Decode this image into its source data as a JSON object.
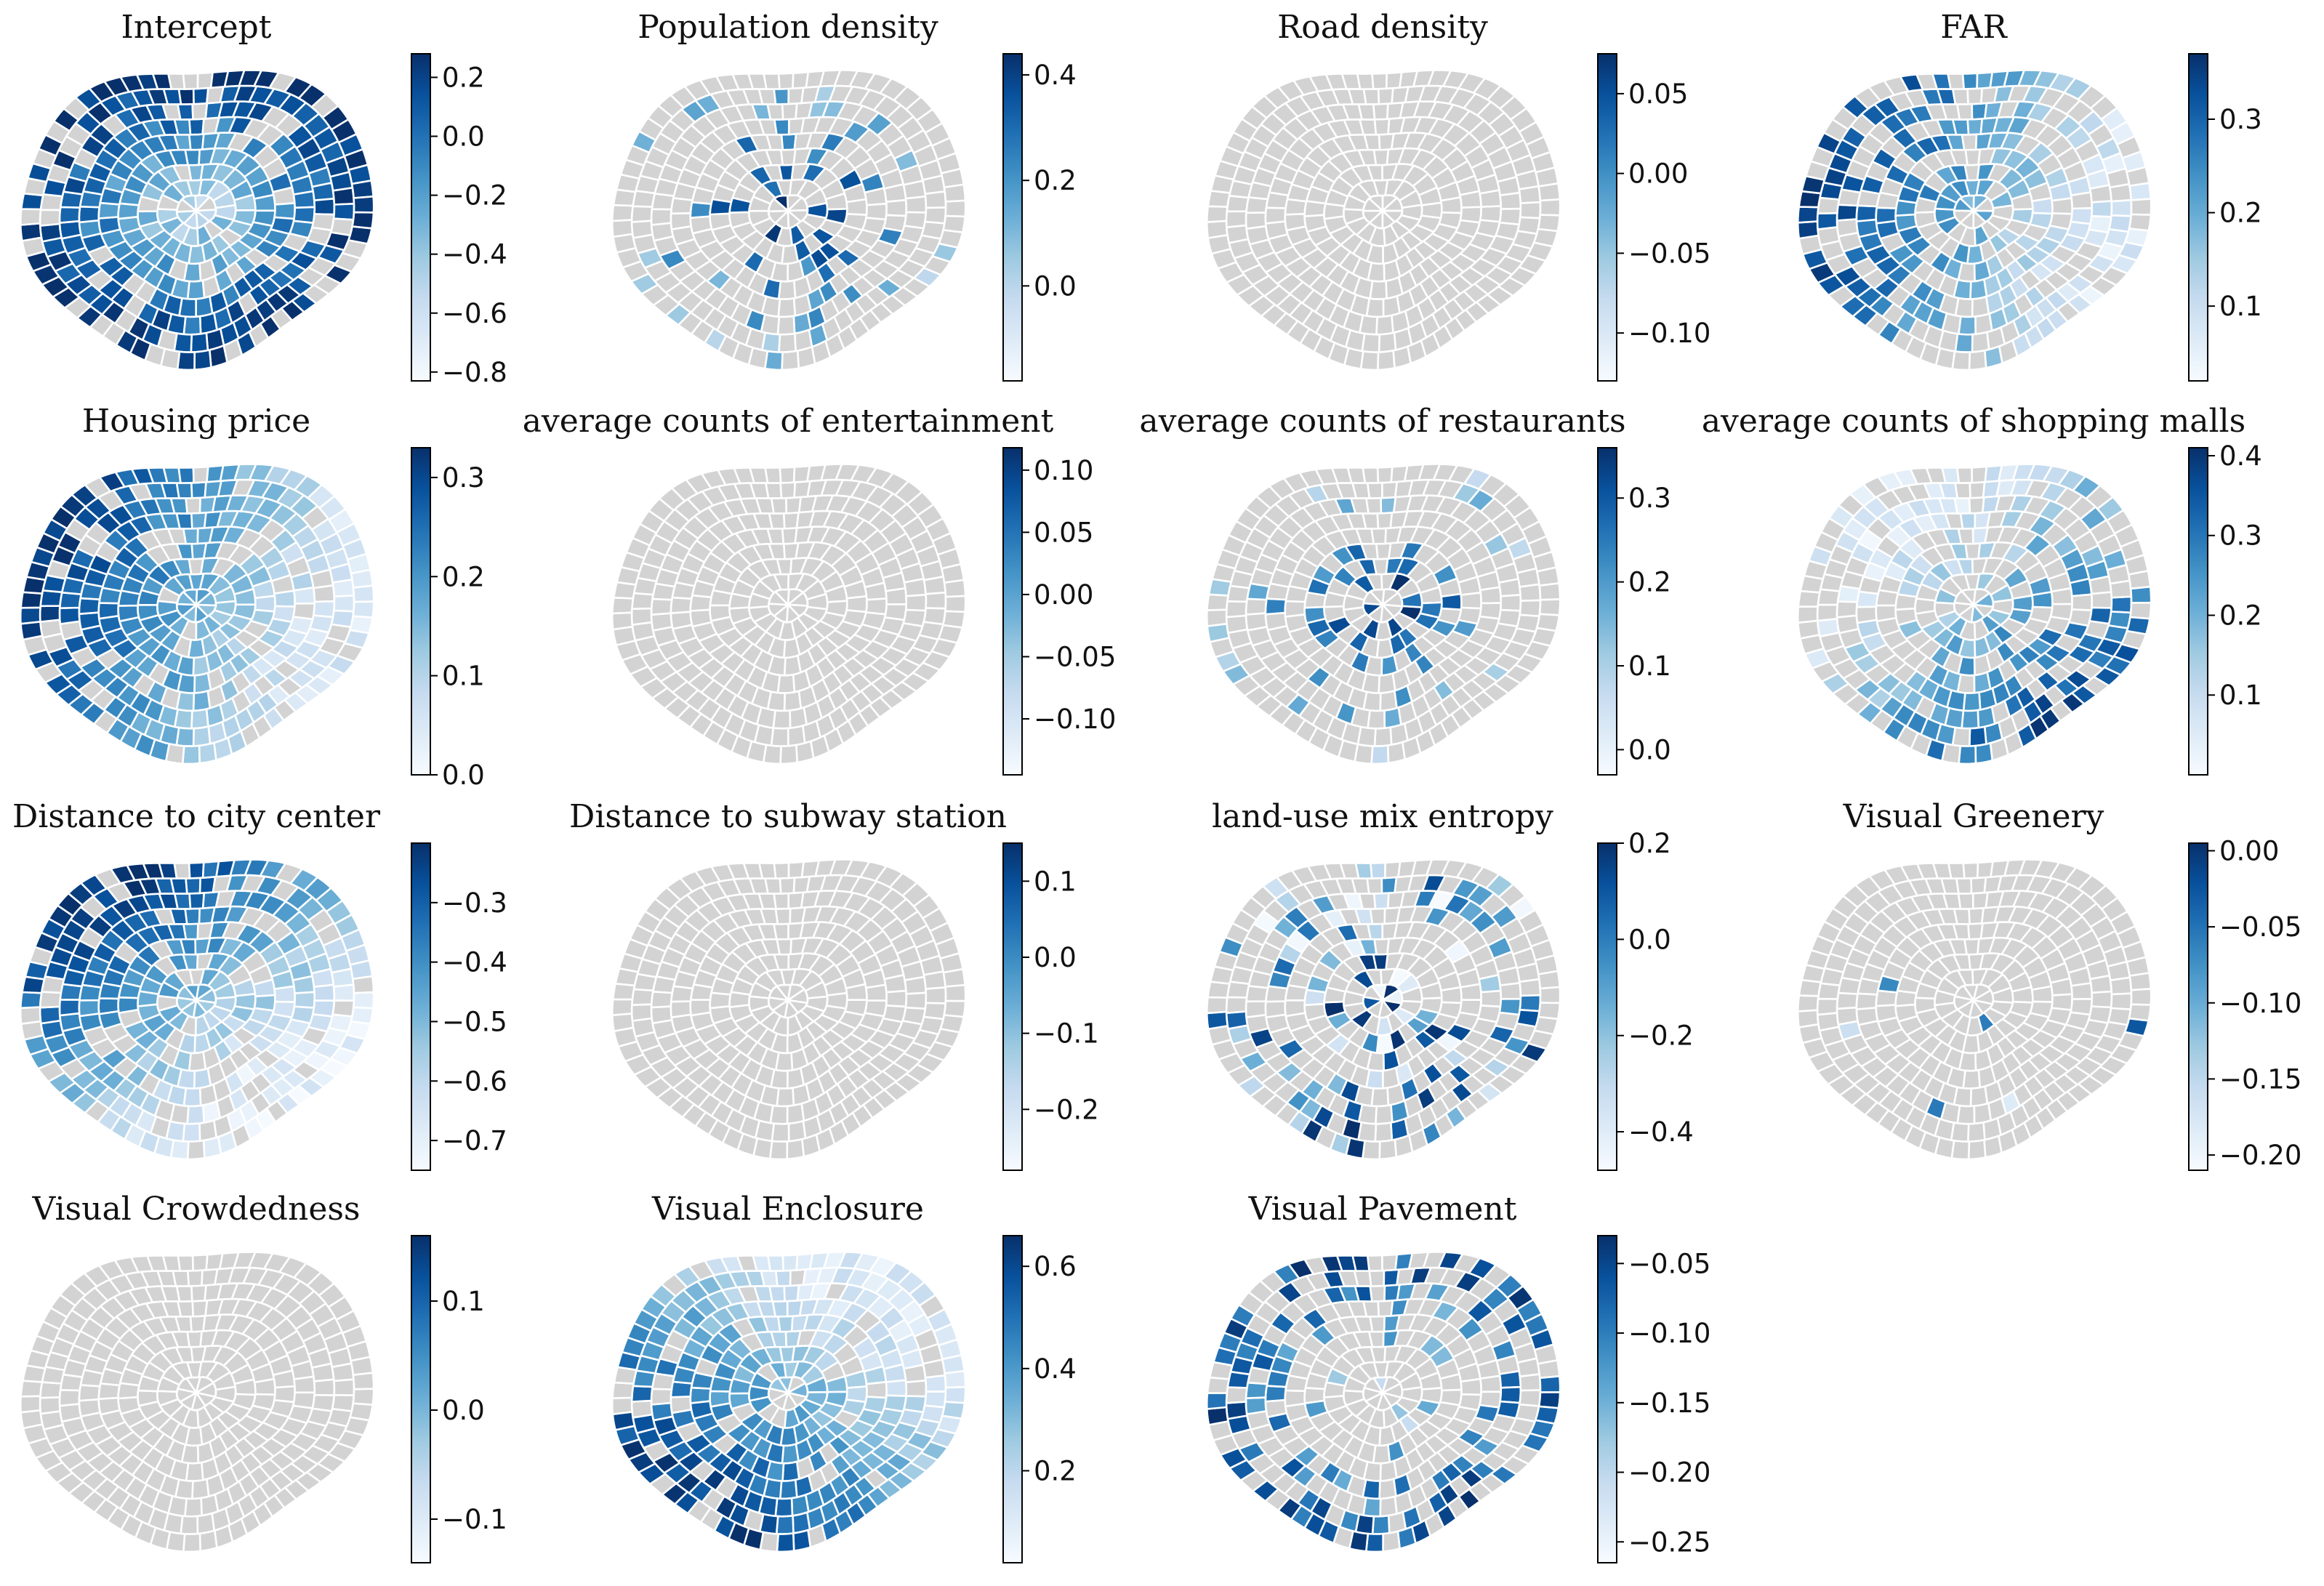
{
  "figure": {
    "type": "choropleth-grid",
    "grid": {
      "rows": 4,
      "cols": 4
    },
    "colormap": "Blues",
    "no_data_color": "#d3d3d3",
    "boundary_color": "#ffffff"
  },
  "chart_data": [
    {
      "type": "heatmap",
      "title": "Intercept",
      "vmin": -0.83,
      "vmax": 0.28,
      "ticks": [
        0.2,
        0.0,
        -0.2,
        -0.4,
        -0.6,
        -0.8
      ],
      "tick_labels": [
        "0.2",
        "0.0",
        "−0.2",
        "−0.4",
        "−0.6",
        "−0.8"
      ],
      "pattern": "outer",
      "coverage": 0.78,
      "seed": 11
    },
    {
      "type": "heatmap",
      "title": "Population density",
      "vmin": -0.18,
      "vmax": 0.44,
      "ticks": [
        0.4,
        0.2,
        0.0
      ],
      "tick_labels": [
        "0.4",
        "0.2",
        "0.0"
      ],
      "pattern": "star",
      "coverage": 0.22,
      "seed": 23
    },
    {
      "type": "heatmap",
      "title": "Road density",
      "vmin": -0.13,
      "vmax": 0.075,
      "ticks": [
        0.05,
        0.0,
        -0.05,
        -0.1
      ],
      "tick_labels": [
        "0.05",
        "0.00",
        "−0.05",
        "−0.10"
      ],
      "pattern": "none",
      "coverage": 0.0,
      "seed": 37
    },
    {
      "type": "heatmap",
      "title": "FAR",
      "vmin": 0.02,
      "vmax": 0.37,
      "ticks": [
        0.3,
        0.2,
        0.1
      ],
      "tick_labels": [
        "0.3",
        "0.2",
        "0.1"
      ],
      "pattern": "west",
      "coverage": 0.55,
      "seed": 41
    },
    {
      "type": "heatmap",
      "title": "Housing price",
      "vmin": 0.0,
      "vmax": 0.33,
      "ticks": [
        0.3,
        0.2,
        0.1,
        0.0
      ],
      "tick_labels": [
        "0.3",
        "0.2",
        "0.1",
        "0.0"
      ],
      "pattern": "west",
      "coverage": 0.8,
      "seed": 53
    },
    {
      "type": "heatmap",
      "title": "average counts of entertainment",
      "vmin": -0.145,
      "vmax": 0.118,
      "ticks": [
        0.1,
        0.05,
        0.0,
        -0.05,
        -0.1
      ],
      "tick_labels": [
        "0.10",
        "0.05",
        "0.00",
        "−0.05",
        "−0.10"
      ],
      "pattern": "none",
      "coverage": 0.0,
      "seed": 61
    },
    {
      "type": "heatmap",
      "title": "average counts of restaurants",
      "vmin": -0.03,
      "vmax": 0.36,
      "ticks": [
        0.3,
        0.2,
        0.1,
        0.0
      ],
      "tick_labels": [
        "0.3",
        "0.2",
        "0.1",
        "0.0"
      ],
      "pattern": "center",
      "coverage": 0.2,
      "seed": 71
    },
    {
      "type": "heatmap",
      "title": "average counts of shopping malls",
      "vmin": 0.0,
      "vmax": 0.41,
      "ticks": [
        0.4,
        0.3,
        0.2,
        0.1
      ],
      "tick_labels": [
        "0.4",
        "0.3",
        "0.2",
        "0.1"
      ],
      "pattern": "southeast",
      "coverage": 0.5,
      "seed": 83
    },
    {
      "type": "heatmap",
      "title": "Distance to city center",
      "vmin": -0.75,
      "vmax": -0.2,
      "ticks": [
        -0.3,
        -0.4,
        -0.5,
        -0.6,
        -0.7
      ],
      "tick_labels": [
        "−0.3",
        "−0.4",
        "−0.5",
        "−0.6",
        "−0.7"
      ],
      "pattern": "northwest",
      "coverage": 0.8,
      "seed": 97
    },
    {
      "type": "heatmap",
      "title": "Distance to subway station",
      "vmin": -0.28,
      "vmax": 0.15,
      "ticks": [
        0.1,
        0.0,
        -0.1,
        -0.2
      ],
      "tick_labels": [
        "0.1",
        "0.0",
        "−0.1",
        "−0.2"
      ],
      "pattern": "none",
      "coverage": 0.0,
      "seed": 101
    },
    {
      "type": "heatmap",
      "title": "land-use mix entropy",
      "vmin": -0.48,
      "vmax": 0.2,
      "ticks": [
        0.2,
        0.0,
        -0.2,
        -0.4
      ],
      "tick_labels": [
        "0.2",
        "0.0",
        "−0.2",
        "−0.4"
      ],
      "pattern": "scatter",
      "coverage": 0.3,
      "seed": 113
    },
    {
      "type": "heatmap",
      "title": "Visual Greenery",
      "vmin": -0.21,
      "vmax": 0.005,
      "ticks": [
        0.0,
        -0.05,
        -0.1,
        -0.15,
        -0.2
      ],
      "tick_labels": [
        "0.00",
        "−0.05",
        "−0.10",
        "−0.15",
        "−0.20"
      ],
      "pattern": "few",
      "coverage": 0.02,
      "seed": 127
    },
    {
      "type": "heatmap",
      "title": "Visual Crowdedness",
      "vmin": -0.14,
      "vmax": 0.16,
      "ticks": [
        0.1,
        0.0,
        -0.1
      ],
      "tick_labels": [
        "0.1",
        "0.0",
        "−0.1"
      ],
      "pattern": "none",
      "coverage": 0.0,
      "seed": 131
    },
    {
      "type": "heatmap",
      "title": "Visual  Enclosure",
      "vmin": 0.02,
      "vmax": 0.66,
      "ticks": [
        0.6,
        0.4,
        0.2
      ],
      "tick_labels": [
        "0.6",
        "0.4",
        "0.2"
      ],
      "pattern": "southwest",
      "coverage": 0.82,
      "seed": 139
    },
    {
      "type": "heatmap",
      "title": "Visual Pavement",
      "vmin": -0.265,
      "vmax": -0.03,
      "ticks": [
        -0.05,
        -0.1,
        -0.15,
        -0.2,
        -0.25
      ],
      "tick_labels": [
        "−0.05",
        "−0.10",
        "−0.15",
        "−0.20",
        "−0.25"
      ],
      "pattern": "ring",
      "coverage": 0.35,
      "seed": 151
    }
  ]
}
